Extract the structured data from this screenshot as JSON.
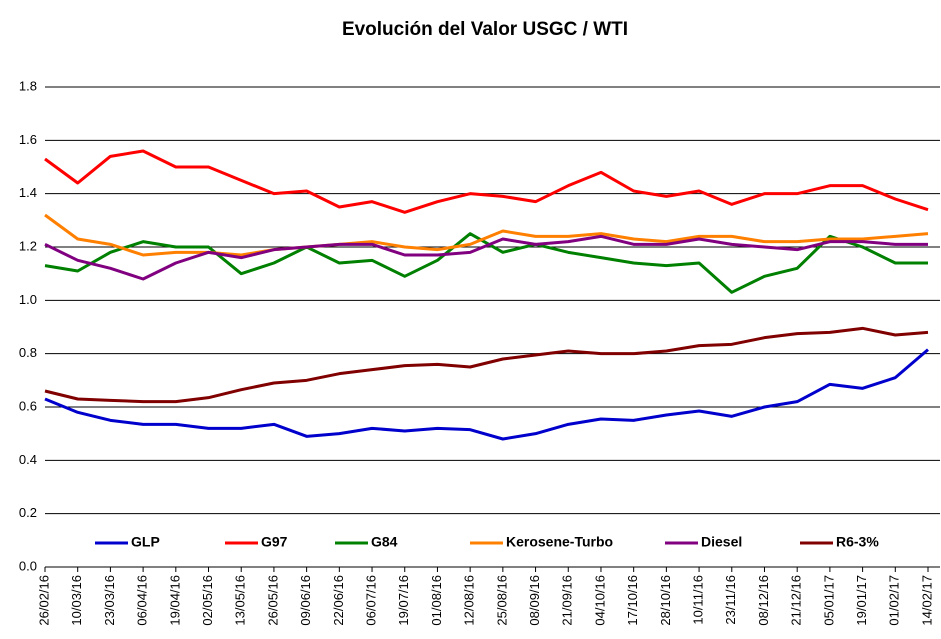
{
  "chart_data": {
    "type": "line",
    "title": "Evolución del Valor USGC / WTI",
    "categories": [
      "26/02/16",
      "10/03/16",
      "23/03/16",
      "06/04/16",
      "19/04/16",
      "02/05/16",
      "13/05/16",
      "26/05/16",
      "09/06/16",
      "22/06/16",
      "06/07/16",
      "19/07/16",
      "01/08/16",
      "12/08/16",
      "25/08/16",
      "08/09/16",
      "21/09/16",
      "04/10/16",
      "17/10/16",
      "28/10/16",
      "10/11/16",
      "23/11/16",
      "08/12/16",
      "21/12/16",
      "05/01/17",
      "19/01/17",
      "01/02/17",
      "14/02/17"
    ],
    "series": [
      {
        "name": "GLP",
        "color": "#0000cc",
        "values": [
          0.63,
          0.58,
          0.55,
          0.535,
          0.535,
          0.52,
          0.52,
          0.535,
          0.49,
          0.5,
          0.52,
          0.51,
          0.52,
          0.515,
          0.48,
          0.5,
          0.535,
          0.555,
          0.55,
          0.57,
          0.585,
          0.565,
          0.6,
          0.62,
          0.685,
          0.67,
          0.71,
          0.815
        ]
      },
      {
        "name": "G97",
        "color": "#ff0000",
        "values": [
          1.53,
          1.44,
          1.54,
          1.56,
          1.5,
          1.5,
          1.45,
          1.4,
          1.41,
          1.35,
          1.37,
          1.33,
          1.37,
          1.4,
          1.39,
          1.37,
          1.43,
          1.48,
          1.41,
          1.39,
          1.41,
          1.36,
          1.4,
          1.4,
          1.43,
          1.43,
          1.38,
          1.34
        ]
      },
      {
        "name": "G84",
        "color": "#008000",
        "values": [
          1.13,
          1.11,
          1.18,
          1.22,
          1.2,
          1.2,
          1.1,
          1.14,
          1.2,
          1.14,
          1.15,
          1.09,
          1.15,
          1.25,
          1.18,
          1.21,
          1.18,
          1.16,
          1.14,
          1.13,
          1.14,
          1.03,
          1.09,
          1.12,
          1.24,
          1.2,
          1.14,
          1.14
        ]
      },
      {
        "name": "Kerosene-Turbo",
        "color": "#ff8000",
        "values": [
          1.32,
          1.23,
          1.21,
          1.17,
          1.18,
          1.18,
          1.17,
          1.19,
          1.2,
          1.21,
          1.22,
          1.2,
          1.19,
          1.21,
          1.26,
          1.24,
          1.24,
          1.25,
          1.23,
          1.22,
          1.24,
          1.24,
          1.22,
          1.22,
          1.23,
          1.23,
          1.24,
          1.25
        ]
      },
      {
        "name": "Diesel",
        "color": "#800080",
        "values": [
          1.21,
          1.15,
          1.12,
          1.08,
          1.14,
          1.18,
          1.16,
          1.19,
          1.2,
          1.21,
          1.21,
          1.17,
          1.17,
          1.18,
          1.23,
          1.21,
          1.22,
          1.24,
          1.21,
          1.21,
          1.23,
          1.21,
          1.2,
          1.19,
          1.22,
          1.22,
          1.21,
          1.21
        ]
      },
      {
        "name": "R6-3%",
        "color": "#800000",
        "values": [
          0.66,
          0.63,
          0.625,
          0.62,
          0.62,
          0.635,
          0.665,
          0.69,
          0.7,
          0.725,
          0.74,
          0.755,
          0.76,
          0.75,
          0.78,
          0.795,
          0.81,
          0.8,
          0.8,
          0.81,
          0.83,
          0.835,
          0.86,
          0.875,
          0.88,
          0.895,
          0.87,
          0.88
        ]
      }
    ],
    "ylim": [
      0,
      1.8
    ],
    "yticks": [
      {
        "value": 0,
        "label": "0.0"
      },
      {
        "value": 0.2,
        "label": "0.2"
      },
      {
        "value": 0.4,
        "label": "0.4"
      },
      {
        "value": 0.6,
        "label": "0.6"
      },
      {
        "value": 0.8,
        "label": "0.8"
      },
      {
        "value": 1,
        "label": "1.0"
      },
      {
        "value": 1.2,
        "label": "1.2"
      },
      {
        "value": 1.4,
        "label": "1.4"
      },
      {
        "value": 1.6,
        "label": "1.6"
      },
      {
        "value": 1.8,
        "label": "1.8"
      }
    ],
    "grid": true,
    "legend": "bottom"
  }
}
